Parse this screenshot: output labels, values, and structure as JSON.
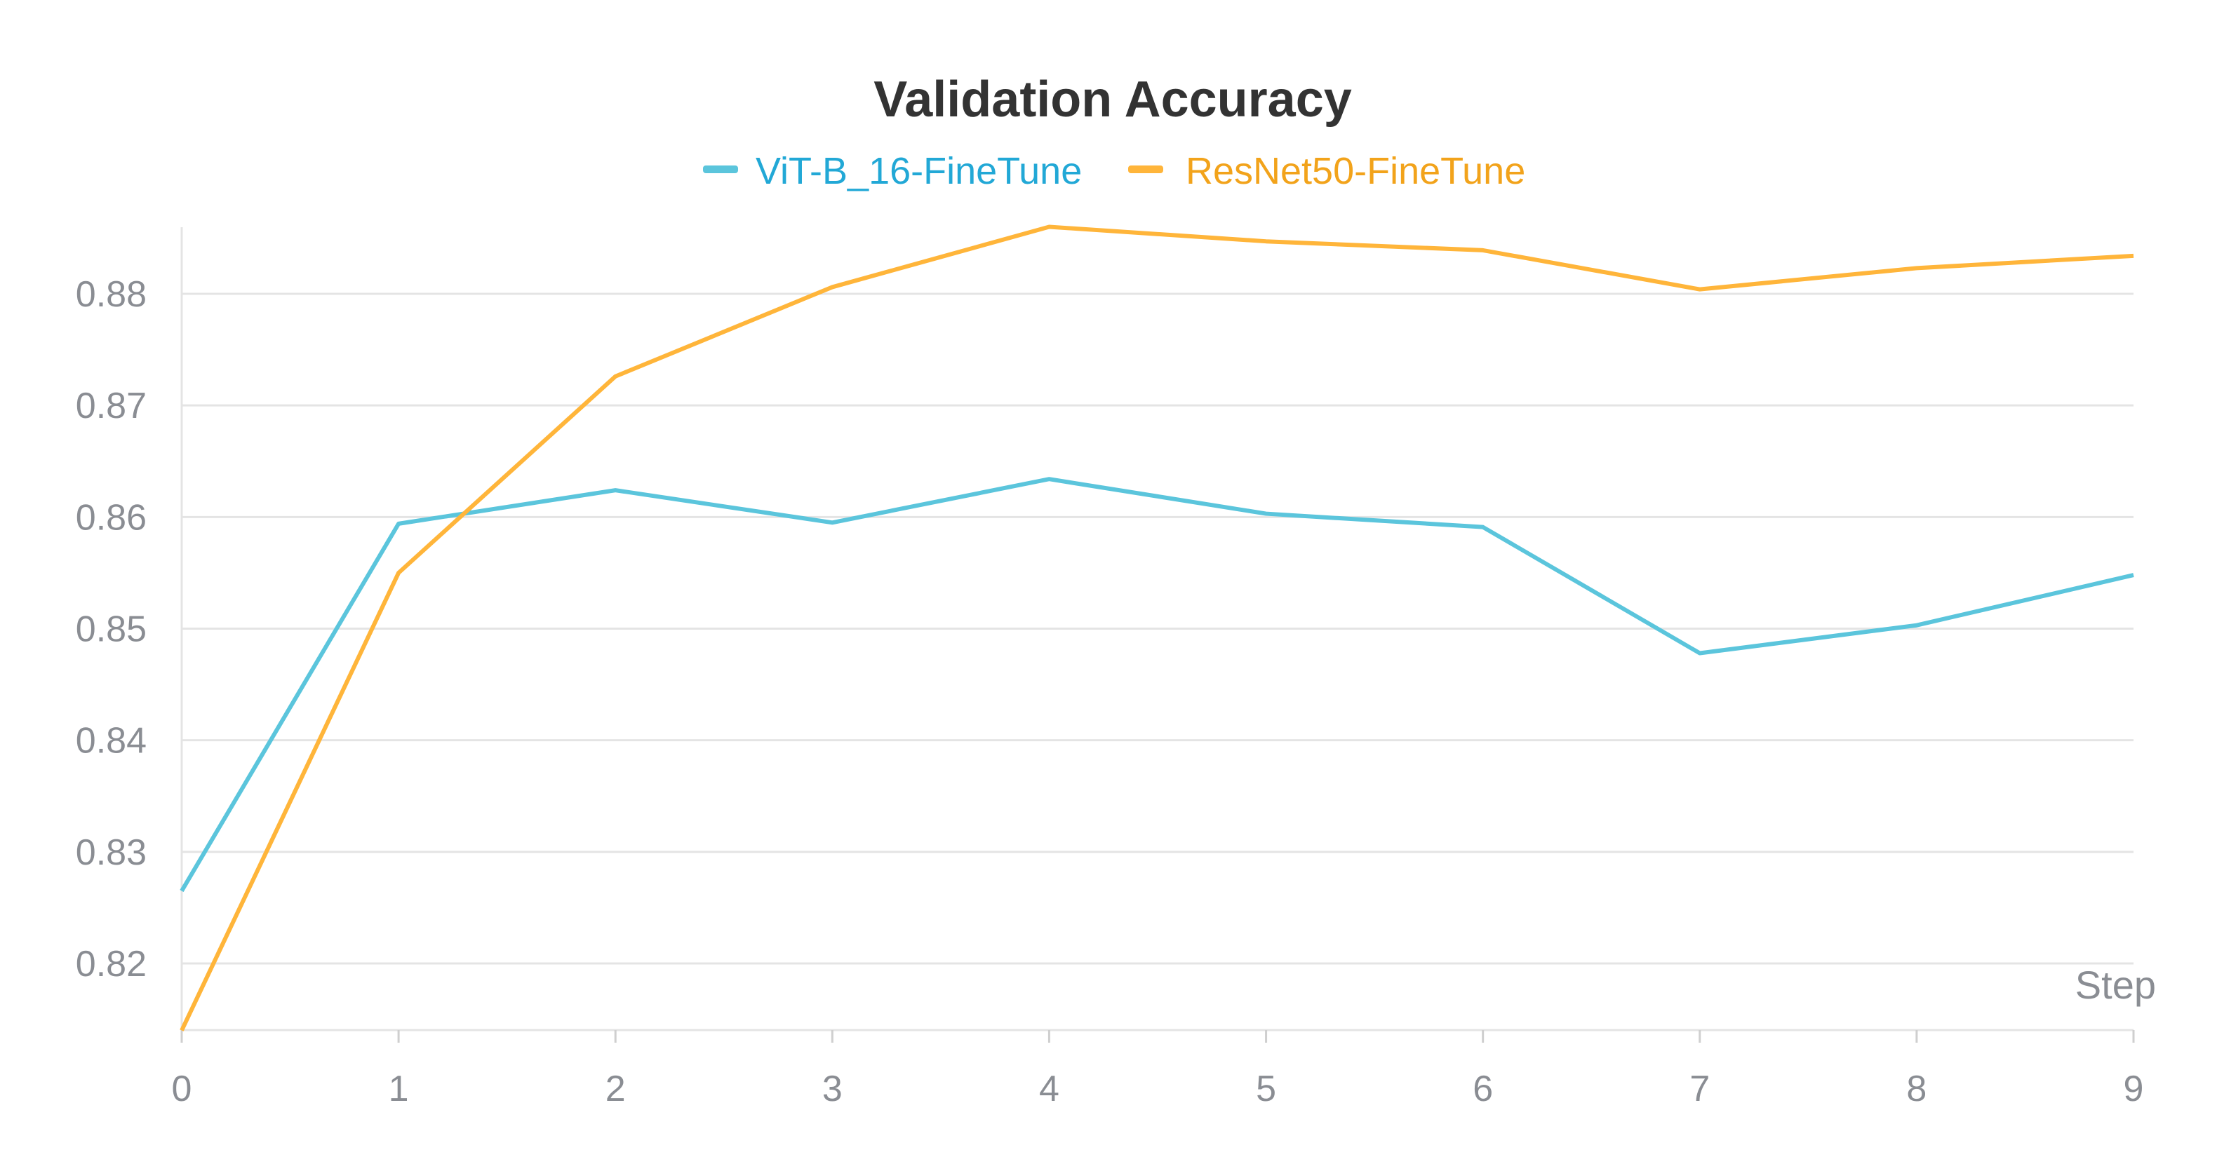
{
  "chart_data": {
    "type": "line",
    "title": "Validation Accuracy",
    "xlabel": "Step",
    "ylabel": "",
    "x": [
      0,
      1,
      2,
      3,
      4,
      5,
      6,
      7,
      8,
      9
    ],
    "xlim": [
      0,
      9
    ],
    "ylim": [
      0.814,
      0.886
    ],
    "xticks": [
      "0",
      "1",
      "2",
      "3",
      "4",
      "5",
      "6",
      "7",
      "8",
      "9"
    ],
    "yticks": [
      "0.82",
      "0.83",
      "0.84",
      "0.85",
      "0.86",
      "0.87",
      "0.88"
    ],
    "grid": true,
    "legend_placement": "top-center",
    "series": [
      {
        "name": "ViT-B_16-FineTune",
        "color": "#5bc5dc",
        "label_color": "#22a8d6",
        "values": [
          0.8265,
          0.8594,
          0.8624,
          0.8595,
          0.8634,
          0.8603,
          0.8591,
          0.8478,
          0.8503,
          0.8548
        ]
      },
      {
        "name": "ResNet50-FineTune",
        "color": "#ffb53a",
        "label_color": "#f2a31b",
        "values": [
          0.814,
          0.855,
          0.8726,
          0.8806,
          0.886,
          0.8847,
          0.8839,
          0.8804,
          0.8823,
          0.8834
        ]
      }
    ]
  }
}
